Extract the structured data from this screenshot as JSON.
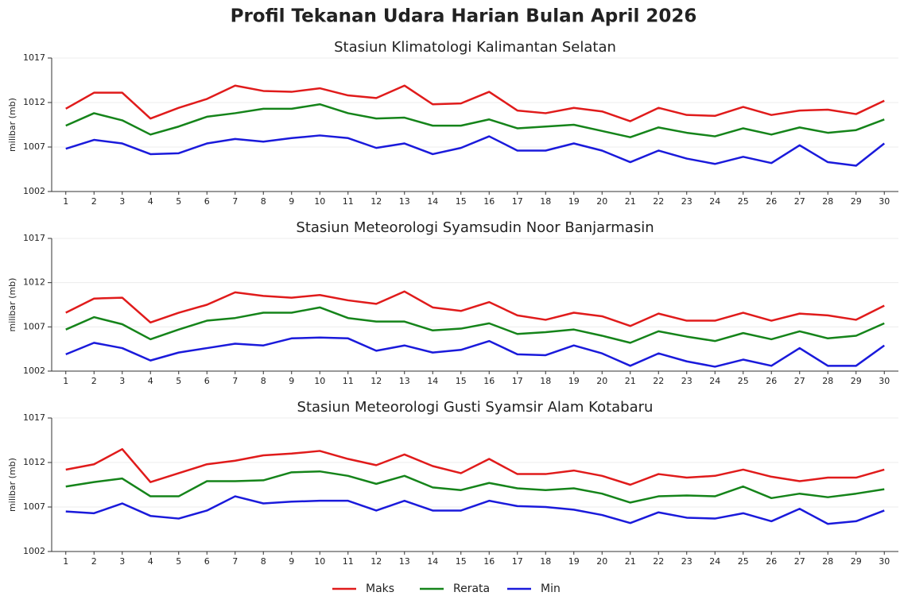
{
  "title": "Profil Tekanan Udara Harian Bulan April 2026",
  "chart_data": [
    {
      "type": "line",
      "title": "Stasiun Klimatologi Kalimantan Selatan",
      "ylabel": "milibar (mb)",
      "categories": [
        "1",
        "2",
        "3",
        "4",
        "5",
        "6",
        "7",
        "8",
        "9",
        "10",
        "11",
        "12",
        "13",
        "14",
        "15",
        "16",
        "17",
        "18",
        "19",
        "20",
        "21",
        "22",
        "23",
        "24",
        "25",
        "26",
        "27",
        "28",
        "29",
        "30"
      ],
      "ylim": [
        1002,
        1017
      ],
      "yticks": [
        1002,
        1007,
        1012,
        1017
      ],
      "grid": true,
      "series": [
        {
          "name": "Maks",
          "color": "#e01b1b",
          "values": [
            1011.3,
            1013.1,
            1013.1,
            1010.2,
            1011.4,
            1012.4,
            1013.9,
            1013.3,
            1013.2,
            1013.6,
            1012.8,
            1012.5,
            1013.9,
            1011.8,
            1011.9,
            1013.2,
            1011.1,
            1010.8,
            1011.4,
            1011.0,
            1009.9,
            1011.4,
            1010.6,
            1010.5,
            1011.5,
            1010.6,
            1011.1,
            1011.2,
            1010.7,
            1012.2
          ]
        },
        {
          "name": "Rerata",
          "color": "#15841a",
          "values": [
            1009.4,
            1010.8,
            1010.0,
            1008.4,
            1009.3,
            1010.4,
            1010.8,
            1011.3,
            1011.3,
            1011.8,
            1010.8,
            1010.2,
            1010.3,
            1009.4,
            1009.4,
            1010.1,
            1009.1,
            1009.3,
            1009.5,
            1008.8,
            1008.1,
            1009.2,
            1008.6,
            1008.2,
            1009.1,
            1008.4,
            1009.2,
            1008.6,
            1008.9,
            1010.1
          ]
        },
        {
          "name": "Min",
          "color": "#1a1adb",
          "values": [
            1006.8,
            1007.8,
            1007.4,
            1006.2,
            1006.3,
            1007.4,
            1007.9,
            1007.6,
            1008.0,
            1008.3,
            1008.0,
            1006.9,
            1007.4,
            1006.2,
            1006.9,
            1008.2,
            1006.6,
            1006.6,
            1007.4,
            1006.6,
            1005.3,
            1006.6,
            1005.7,
            1005.1,
            1005.9,
            1005.2,
            1007.2,
            1005.3,
            1004.9,
            1007.4
          ]
        }
      ]
    },
    {
      "type": "line",
      "title": "Stasiun Meteorologi Syamsudin Noor Banjarmasin",
      "ylabel": "milibar (mb)",
      "categories": [
        "1",
        "2",
        "3",
        "4",
        "5",
        "6",
        "7",
        "8",
        "9",
        "10",
        "11",
        "12",
        "13",
        "14",
        "15",
        "16",
        "17",
        "18",
        "19",
        "20",
        "21",
        "22",
        "23",
        "24",
        "25",
        "26",
        "27",
        "28",
        "29",
        "30"
      ],
      "ylim": [
        1002,
        1017
      ],
      "yticks": [
        1002,
        1007,
        1012,
        1017
      ],
      "grid": true,
      "series": [
        {
          "name": "Maks",
          "color": "#e01b1b",
          "values": [
            1008.6,
            1010.2,
            1010.3,
            1007.5,
            1008.6,
            1009.5,
            1010.9,
            1010.5,
            1010.3,
            1010.6,
            1010.0,
            1009.6,
            1011.0,
            1009.2,
            1008.8,
            1009.8,
            1008.3,
            1007.8,
            1008.6,
            1008.2,
            1007.1,
            1008.5,
            1007.7,
            1007.7,
            1008.6,
            1007.7,
            1008.5,
            1008.3,
            1007.8,
            1009.4
          ]
        },
        {
          "name": "Rerata",
          "color": "#15841a",
          "values": [
            1006.7,
            1008.1,
            1007.3,
            1005.6,
            1006.7,
            1007.7,
            1008.0,
            1008.6,
            1008.6,
            1009.2,
            1008.0,
            1007.6,
            1007.6,
            1006.6,
            1006.8,
            1007.4,
            1006.2,
            1006.4,
            1006.7,
            1006.0,
            1005.2,
            1006.5,
            1005.9,
            1005.4,
            1006.3,
            1005.6,
            1006.5,
            1005.7,
            1006.0,
            1007.4
          ]
        },
        {
          "name": "Min",
          "color": "#1a1adb",
          "values": [
            1003.9,
            1005.2,
            1004.6,
            1003.2,
            1004.1,
            1004.6,
            1005.1,
            1004.9,
            1005.7,
            1005.8,
            1005.7,
            1004.3,
            1004.9,
            1004.1,
            1004.4,
            1005.4,
            1003.9,
            1003.8,
            1004.9,
            1004.0,
            1002.6,
            1004.0,
            1003.1,
            1002.5,
            1003.3,
            1002.6,
            1004.6,
            1002.6,
            1002.6,
            1004.9
          ]
        }
      ]
    },
    {
      "type": "line",
      "title": "Stasiun Meteorologi Gusti Syamsir Alam Kotabaru",
      "ylabel": "milibar (mb)",
      "categories": [
        "1",
        "2",
        "3",
        "4",
        "5",
        "6",
        "7",
        "8",
        "9",
        "10",
        "11",
        "12",
        "13",
        "14",
        "15",
        "16",
        "17",
        "18",
        "19",
        "20",
        "21",
        "22",
        "23",
        "24",
        "25",
        "26",
        "27",
        "28",
        "29",
        "30"
      ],
      "ylim": [
        1002,
        1017
      ],
      "yticks": [
        1002,
        1007,
        1012,
        1017
      ],
      "grid": true,
      "series": [
        {
          "name": "Maks",
          "color": "#e01b1b",
          "values": [
            1011.2,
            1011.8,
            1013.5,
            1009.8,
            1010.8,
            1011.8,
            1012.2,
            1012.8,
            1013.0,
            1013.3,
            1012.4,
            1011.7,
            1012.9,
            1011.6,
            1010.8,
            1012.4,
            1010.7,
            1010.7,
            1011.1,
            1010.5,
            1009.5,
            1010.7,
            1010.3,
            1010.5,
            1011.2,
            1010.4,
            1009.9,
            1010.3,
            1010.3,
            1011.2
          ]
        },
        {
          "name": "Rerata",
          "color": "#15841a",
          "values": [
            1009.3,
            1009.8,
            1010.2,
            1008.2,
            1008.2,
            1009.9,
            1009.9,
            1010.0,
            1010.9,
            1011.0,
            1010.5,
            1009.6,
            1010.5,
            1009.2,
            1008.9,
            1009.7,
            1009.1,
            1008.9,
            1009.1,
            1008.5,
            1007.5,
            1008.2,
            1008.3,
            1008.2,
            1009.3,
            1008.0,
            1008.5,
            1008.1,
            1008.5,
            1009.0
          ]
        },
        {
          "name": "Min",
          "color": "#1a1adb",
          "values": [
            1006.5,
            1006.3,
            1007.4,
            1006.0,
            1005.7,
            1006.6,
            1008.2,
            1007.4,
            1007.6,
            1007.7,
            1007.7,
            1006.6,
            1007.7,
            1006.6,
            1006.6,
            1007.7,
            1007.1,
            1007.0,
            1006.7,
            1006.1,
            1005.2,
            1006.4,
            1005.8,
            1005.7,
            1006.3,
            1005.4,
            1006.8,
            1005.1,
            1005.4,
            1006.6
          ]
        }
      ]
    }
  ]
}
